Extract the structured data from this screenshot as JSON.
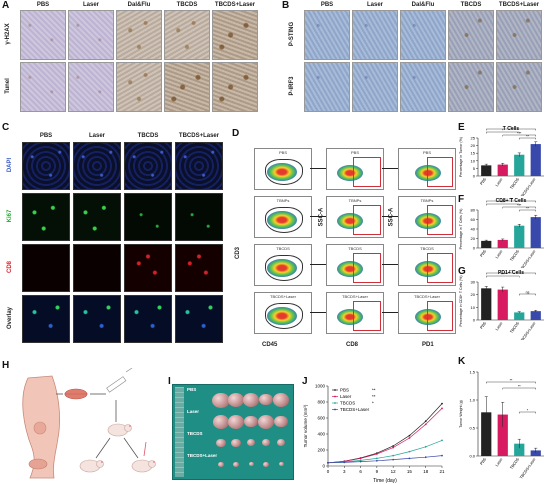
{
  "panels": {
    "A": {
      "label": "A",
      "headers": [
        "PBS",
        "Laser",
        "Dal&Flu",
        "TBCDS",
        "TBCDS+Laser"
      ],
      "rows": [
        "γ-H2AX",
        "Tunel"
      ]
    },
    "B": {
      "label": "B",
      "headers": [
        "PBS",
        "Laser",
        "Dal&Flu",
        "TBCDS",
        "TBCDS+Laser"
      ],
      "rows": [
        "P-STING",
        "P-IRF3"
      ]
    },
    "C": {
      "label": "C",
      "headers": [
        "PBS",
        "Laser",
        "TBCDS",
        "TBCDS+Laser"
      ],
      "rows": [
        "DAPI",
        "Ki67",
        "CD8",
        "Overlay"
      ],
      "row_colors": [
        "#3a5cc8",
        "#2aa83a",
        "#d4202a",
        "#222222"
      ]
    },
    "D": {
      "label": "D",
      "y_axis": "CD3",
      "x_axis_1": "CD45",
      "y_axis_2": "SSC-A",
      "x_axis_2": "CD8",
      "y_axis_3": "SSC-A",
      "x_axis_3": "PD1",
      "col1_titles": [
        "PBS",
        "TBNPs",
        "TBCDS",
        "TBCDS+Laser"
      ],
      "col2_titles": [
        "PBS",
        "TBNPs",
        "TBCDS",
        "TBCDS+Laser"
      ],
      "col3_titles": [
        "PBS",
        "TBNPs",
        "TBCDS",
        "TBCDS+Laser"
      ]
    },
    "H": {
      "label": "H"
    },
    "I": {
      "label": "I",
      "groups": [
        "PBS",
        "Laser",
        "TBCDS",
        "TBCDS+Laser"
      ]
    },
    "J": {
      "label": "J"
    },
    "K": {
      "label": "K"
    },
    "E": {
      "label": "E"
    },
    "F": {
      "label": "F"
    },
    "G": {
      "label": "G"
    }
  },
  "colors": {
    "pbs": "#222222",
    "laser": "#d81b60",
    "tbcds": "#26a69a",
    "tbcds_laser": "#3949ab"
  },
  "chart_data": [
    {
      "id": "E",
      "type": "bar",
      "title": "T Cells",
      "ylabel": "Percentage in Tumor (%)",
      "categories": [
        "PBS",
        "Laser",
        "TBCDS",
        "TBCDS+Laser"
      ],
      "values": [
        7,
        7.5,
        14,
        21
      ],
      "errors": [
        0.8,
        0.9,
        1.2,
        1.5
      ],
      "ylim": [
        0,
        25
      ],
      "yticks": [
        "0",
        "5",
        "10",
        "15",
        "20",
        "25"
      ],
      "significance": [
        "*",
        "*",
        "***",
        "**"
      ]
    },
    {
      "id": "F",
      "type": "bar",
      "title": "CD8+ T Cells",
      "ylabel": "Percentage in T Cells (%)",
      "categories": [
        "PBS",
        "Laser",
        "TBCDS",
        "TBCDS+Laser"
      ],
      "values": [
        15,
        17,
        47,
        65
      ],
      "errors": [
        1.5,
        2,
        3,
        4
      ],
      "ylim": [
        0,
        80
      ],
      "yticks": [
        "0",
        "20",
        "40",
        "60",
        "80"
      ],
      "significance": [
        "***",
        "***",
        "***",
        "**"
      ]
    },
    {
      "id": "G",
      "type": "bar",
      "title": "PD1+ Cells",
      "ylabel": "Percentage in CD8+ T Cells (%)",
      "categories": [
        "PBS",
        "Laser",
        "TBCDS",
        "TBCDS+Laser"
      ],
      "values": [
        25,
        24,
        6,
        7
      ],
      "errors": [
        1.5,
        2,
        0.6,
        0.7
      ],
      "ylim": [
        0,
        30
      ],
      "yticks": [
        "0",
        "10",
        "20",
        "30"
      ],
      "significance": [
        "***",
        "***",
        "ns"
      ]
    },
    {
      "id": "J",
      "type": "line",
      "xlabel": "Time (day)",
      "ylabel": "Tumor volume (mm³)",
      "x": [
        0,
        3,
        6,
        9,
        12,
        15,
        18,
        21
      ],
      "xticks": [
        "0",
        "3",
        "6",
        "9",
        "12",
        "15",
        "18",
        "21"
      ],
      "ylim": [
        0,
        1000
      ],
      "yticks": [
        "0",
        "200",
        "400",
        "600",
        "800",
        "1000"
      ],
      "series": [
        {
          "name": "PBS",
          "sig": "**",
          "values": [
            40,
            60,
            100,
            160,
            250,
            380,
            560,
            780
          ]
        },
        {
          "name": "Laser",
          "sig": "**",
          "values": [
            40,
            58,
            95,
            150,
            230,
            350,
            520,
            720
          ]
        },
        {
          "name": "TBCDS",
          "sig": "*",
          "values": [
            40,
            50,
            70,
            95,
            130,
            180,
            240,
            320
          ]
        },
        {
          "name": "TBCDS+Laser",
          "sig": "",
          "values": [
            40,
            45,
            55,
            65,
            80,
            95,
            110,
            130
          ]
        }
      ]
    },
    {
      "id": "K",
      "type": "bar",
      "ylabel": "Tumor Weight (g)",
      "categories": [
        "PBS",
        "Laser",
        "TBCDS",
        "TBCDS+Laser"
      ],
      "values": [
        0.78,
        0.74,
        0.22,
        0.1
      ],
      "errors": [
        0.28,
        0.22,
        0.08,
        0.04
      ],
      "ylim": [
        0,
        1.5
      ],
      "yticks": [
        "0.0",
        "0.5",
        "1.0",
        "1.5"
      ],
      "significance": [
        "**",
        "**",
        "*"
      ]
    }
  ]
}
